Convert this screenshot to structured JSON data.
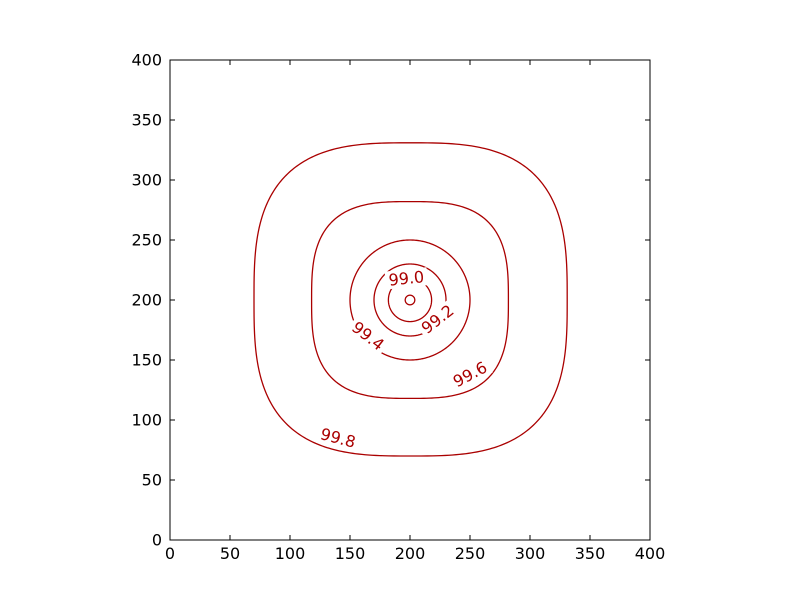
{
  "chart_data": {
    "type": "contour",
    "title": "",
    "xlabel": "",
    "ylabel": "",
    "xlim": [
      0,
      400
    ],
    "ylim": [
      0,
      400
    ],
    "x_ticks": [
      0,
      50,
      100,
      150,
      200,
      250,
      300,
      350,
      400
    ],
    "y_ticks": [
      0,
      50,
      100,
      150,
      200,
      250,
      300,
      350,
      400
    ],
    "grid": false,
    "center": [
      200,
      200
    ],
    "line_color": "#aa0000",
    "contours": [
      {
        "level": "99.8",
        "x_extent": [
          70,
          331
        ],
        "y_extent": [
          70,
          331
        ],
        "shape": "squircle",
        "label_at": [
          140,
          85
        ],
        "label_angle": 15
      },
      {
        "level": "99.6",
        "x_extent": [
          118,
          282
        ],
        "y_extent": [
          118,
          282
        ],
        "shape": "squircle",
        "label_at": [
          250,
          138
        ],
        "label_angle": -28
      },
      {
        "level": "99.4",
        "x_extent": [
          150,
          250
        ],
        "y_extent": [
          150,
          250
        ],
        "shape": "circle",
        "label_at": [
          165,
          170
        ],
        "label_angle": 38
      },
      {
        "level": "99.2",
        "x_extent": [
          170,
          230
        ],
        "y_extent": [
          170,
          230
        ],
        "shape": "circle",
        "label_at": [
          223,
          184
        ],
        "label_angle": -38
      },
      {
        "level": "99.0",
        "x_extent": [
          182,
          218
        ],
        "y_extent": [
          182,
          218
        ],
        "shape": "circle",
        "label_at": [
          197,
          218
        ],
        "label_angle": -6
      },
      {
        "level": "",
        "x_extent": [
          196,
          204
        ],
        "y_extent": [
          196,
          204
        ],
        "shape": "circle"
      }
    ]
  }
}
